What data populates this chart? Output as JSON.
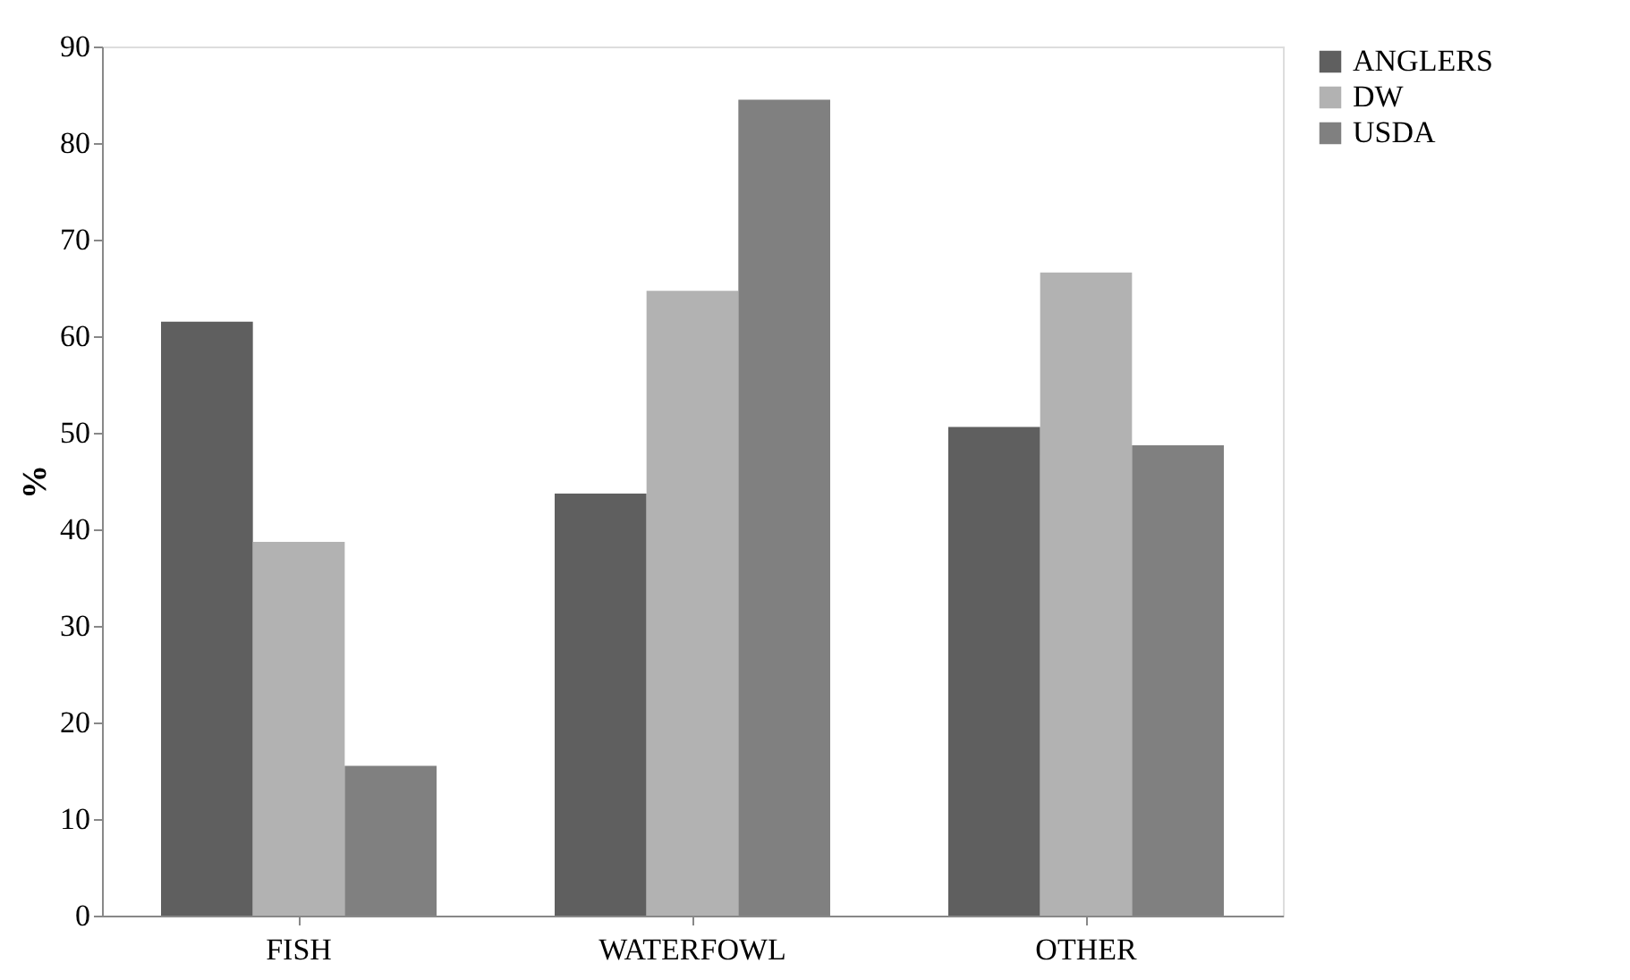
{
  "chart_data": {
    "type": "bar",
    "ylabel": "%",
    "categories": [
      "FISH",
      "WATERFOWL",
      "OTHER"
    ],
    "series": [
      {
        "name": "ANGLERS",
        "color": "#5f5f5f",
        "values": [
          61.5,
          43.7,
          50.6
        ]
      },
      {
        "name": "DW",
        "color": "#b2b2b2",
        "values": [
          38.7,
          64.7,
          66.6
        ]
      },
      {
        "name": "USDA",
        "color": "#808080",
        "values": [
          15.5,
          84.5,
          48.7
        ]
      }
    ],
    "ylim": [
      0,
      90
    ],
    "yticks": [
      0,
      10,
      20,
      30,
      40,
      50,
      60,
      70,
      80,
      90
    ],
    "grid": false,
    "legend": "right"
  }
}
